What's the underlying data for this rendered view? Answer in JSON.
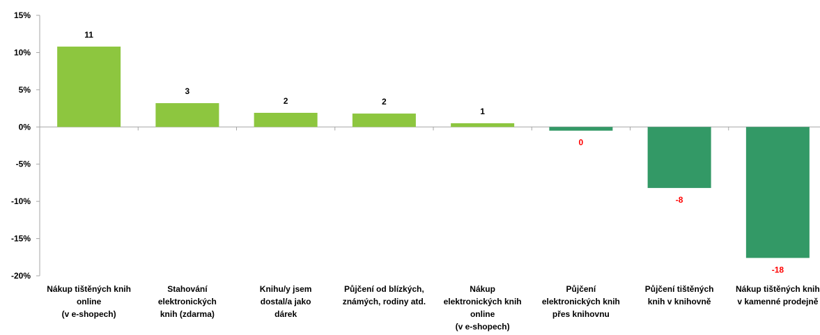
{
  "chart_data": {
    "type": "bar",
    "categories": [
      [
        "Nákup tištěných knih",
        "online",
        "(v e-shopech)"
      ],
      [
        "Stahování",
        "elektronických",
        "knih (zdarma)"
      ],
      [
        "Knihu/y jsem",
        "dostal/a jako",
        "dárek"
      ],
      [
        "Půjčení od blízkých,",
        "známých, rodiny atd."
      ],
      [
        "Nákup",
        "elektronických knih",
        "online",
        "(v e-shopech)"
      ],
      [
        "Půjčení",
        "elektronických knih",
        "přes knihovnu"
      ],
      [
        "Půjčení tištěných",
        "knih v knihovně"
      ],
      [
        "Nákup tištěných knih",
        "v kamenné prodejně"
      ]
    ],
    "values": [
      10.8,
      3.2,
      1.9,
      1.8,
      0.5,
      -0.5,
      -8.2,
      -17.6
    ],
    "data_labels": [
      "11",
      "3",
      "2",
      "2",
      "1",
      "0",
      "-8",
      "-18"
    ],
    "yticks": [
      "15%",
      "10%",
      "5%",
      "0%",
      "-5%",
      "-10%",
      "-15%",
      "-20%"
    ],
    "ytick_values": [
      15,
      10,
      5,
      0,
      -5,
      -10,
      -15,
      -20
    ],
    "ylim": [
      -20,
      15
    ],
    "colors": {
      "positive_bar": "#8DC63F",
      "negative_bar": "#339966",
      "positive_label": "#000000",
      "negative_label": "#FF0000",
      "axis": "#A6A6A6"
    }
  }
}
